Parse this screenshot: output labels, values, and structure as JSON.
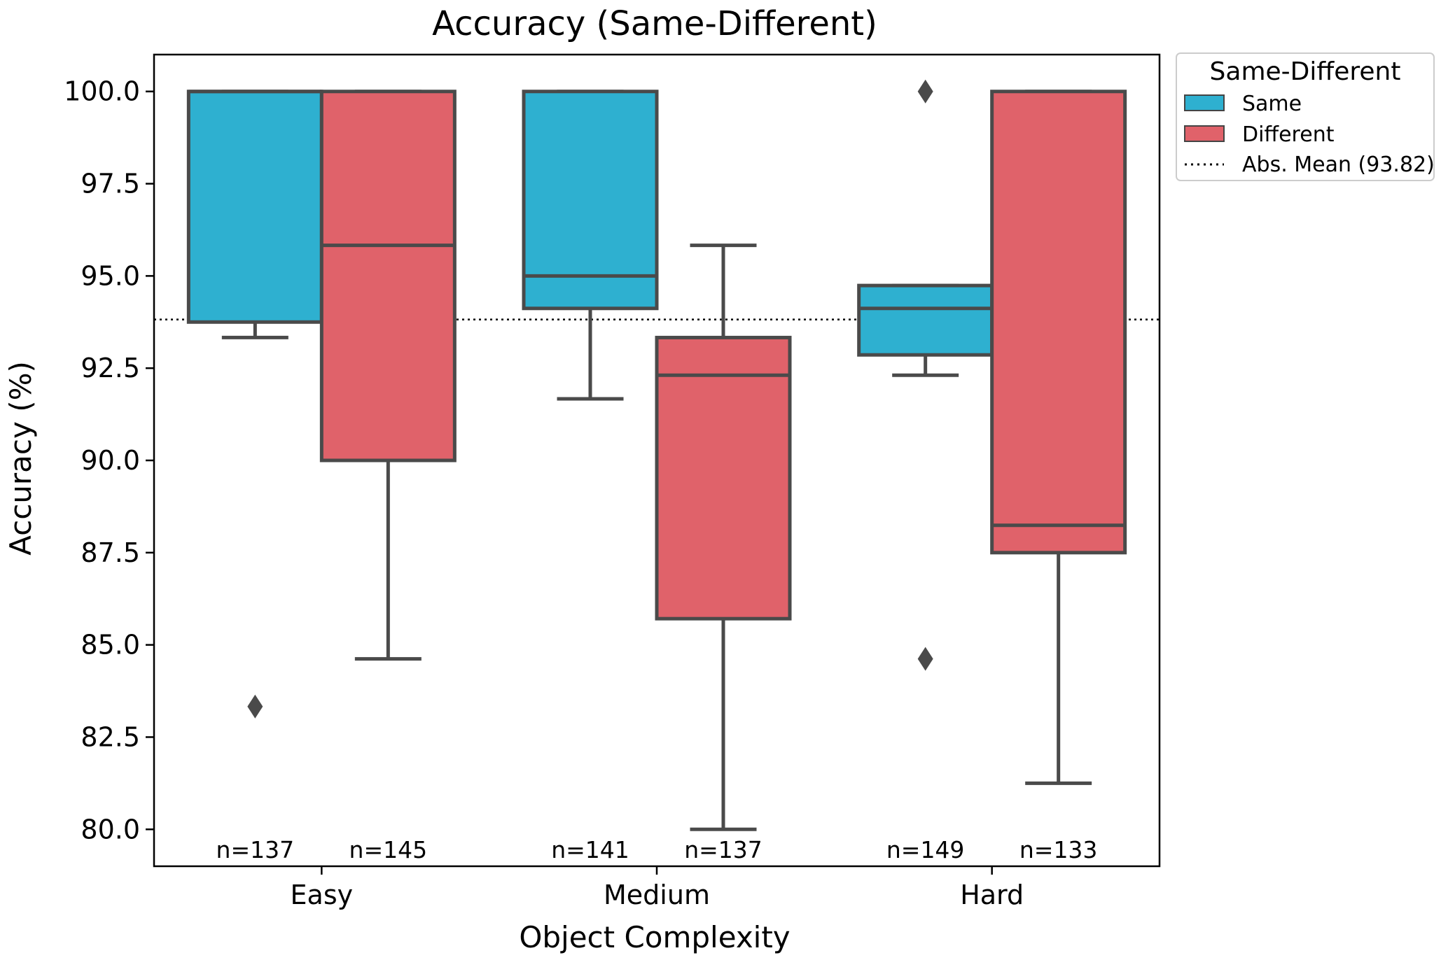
{
  "chart_data": {
    "type": "box",
    "title": "Accuracy (Same-Different)",
    "xlabel": "Object Complexity",
    "ylabel": "Accuracy (%)",
    "ylim": [
      79.0,
      101.0
    ],
    "yticks": [
      "80.0",
      "82.5",
      "85.0",
      "87.5",
      "90.0",
      "92.5",
      "95.0",
      "97.5",
      "100.0"
    ],
    "categories": [
      "Easy",
      "Medium",
      "Hard"
    ],
    "mean_line": {
      "value": 93.82,
      "label": "Abs. Mean (93.82)"
    },
    "legend": {
      "title": "Same-Different",
      "position": "outside-top-right"
    },
    "series": [
      {
        "name": "Same",
        "color": "#2eb0d0",
        "boxes": [
          {
            "category": "Easy",
            "whisker_low": 93.33,
            "q1": 93.75,
            "median": 100.0,
            "q3": 100.0,
            "whisker_high": 100.0,
            "outliers": [
              83.33
            ],
            "n_label": "n=137"
          },
          {
            "category": "Medium",
            "whisker_low": 91.67,
            "q1": 94.12,
            "median": 95.0,
            "q3": 100.0,
            "whisker_high": 100.0,
            "outliers": [],
            "n_label": "n=141"
          },
          {
            "category": "Hard",
            "whisker_low": 92.31,
            "q1": 92.86,
            "median": 94.12,
            "q3": 94.74,
            "whisker_high": 94.74,
            "outliers": [
              100.0,
              84.62
            ],
            "n_label": "n=149"
          }
        ]
      },
      {
        "name": "Different",
        "color": "#e0626a",
        "boxes": [
          {
            "category": "Easy",
            "whisker_low": 84.62,
            "q1": 90.0,
            "median": 95.83,
            "q3": 100.0,
            "whisker_high": 100.0,
            "outliers": [],
            "n_label": "n=145"
          },
          {
            "category": "Medium",
            "whisker_low": 80.0,
            "q1": 85.71,
            "median": 92.31,
            "q3": 93.33,
            "whisker_high": 95.83,
            "outliers": [],
            "n_label": "n=137"
          },
          {
            "category": "Hard",
            "whisker_low": 81.25,
            "q1": 87.5,
            "median": 88.24,
            "q3": 100.0,
            "whisker_high": 100.0,
            "outliers": [],
            "n_label": "n=133"
          }
        ]
      }
    ]
  }
}
